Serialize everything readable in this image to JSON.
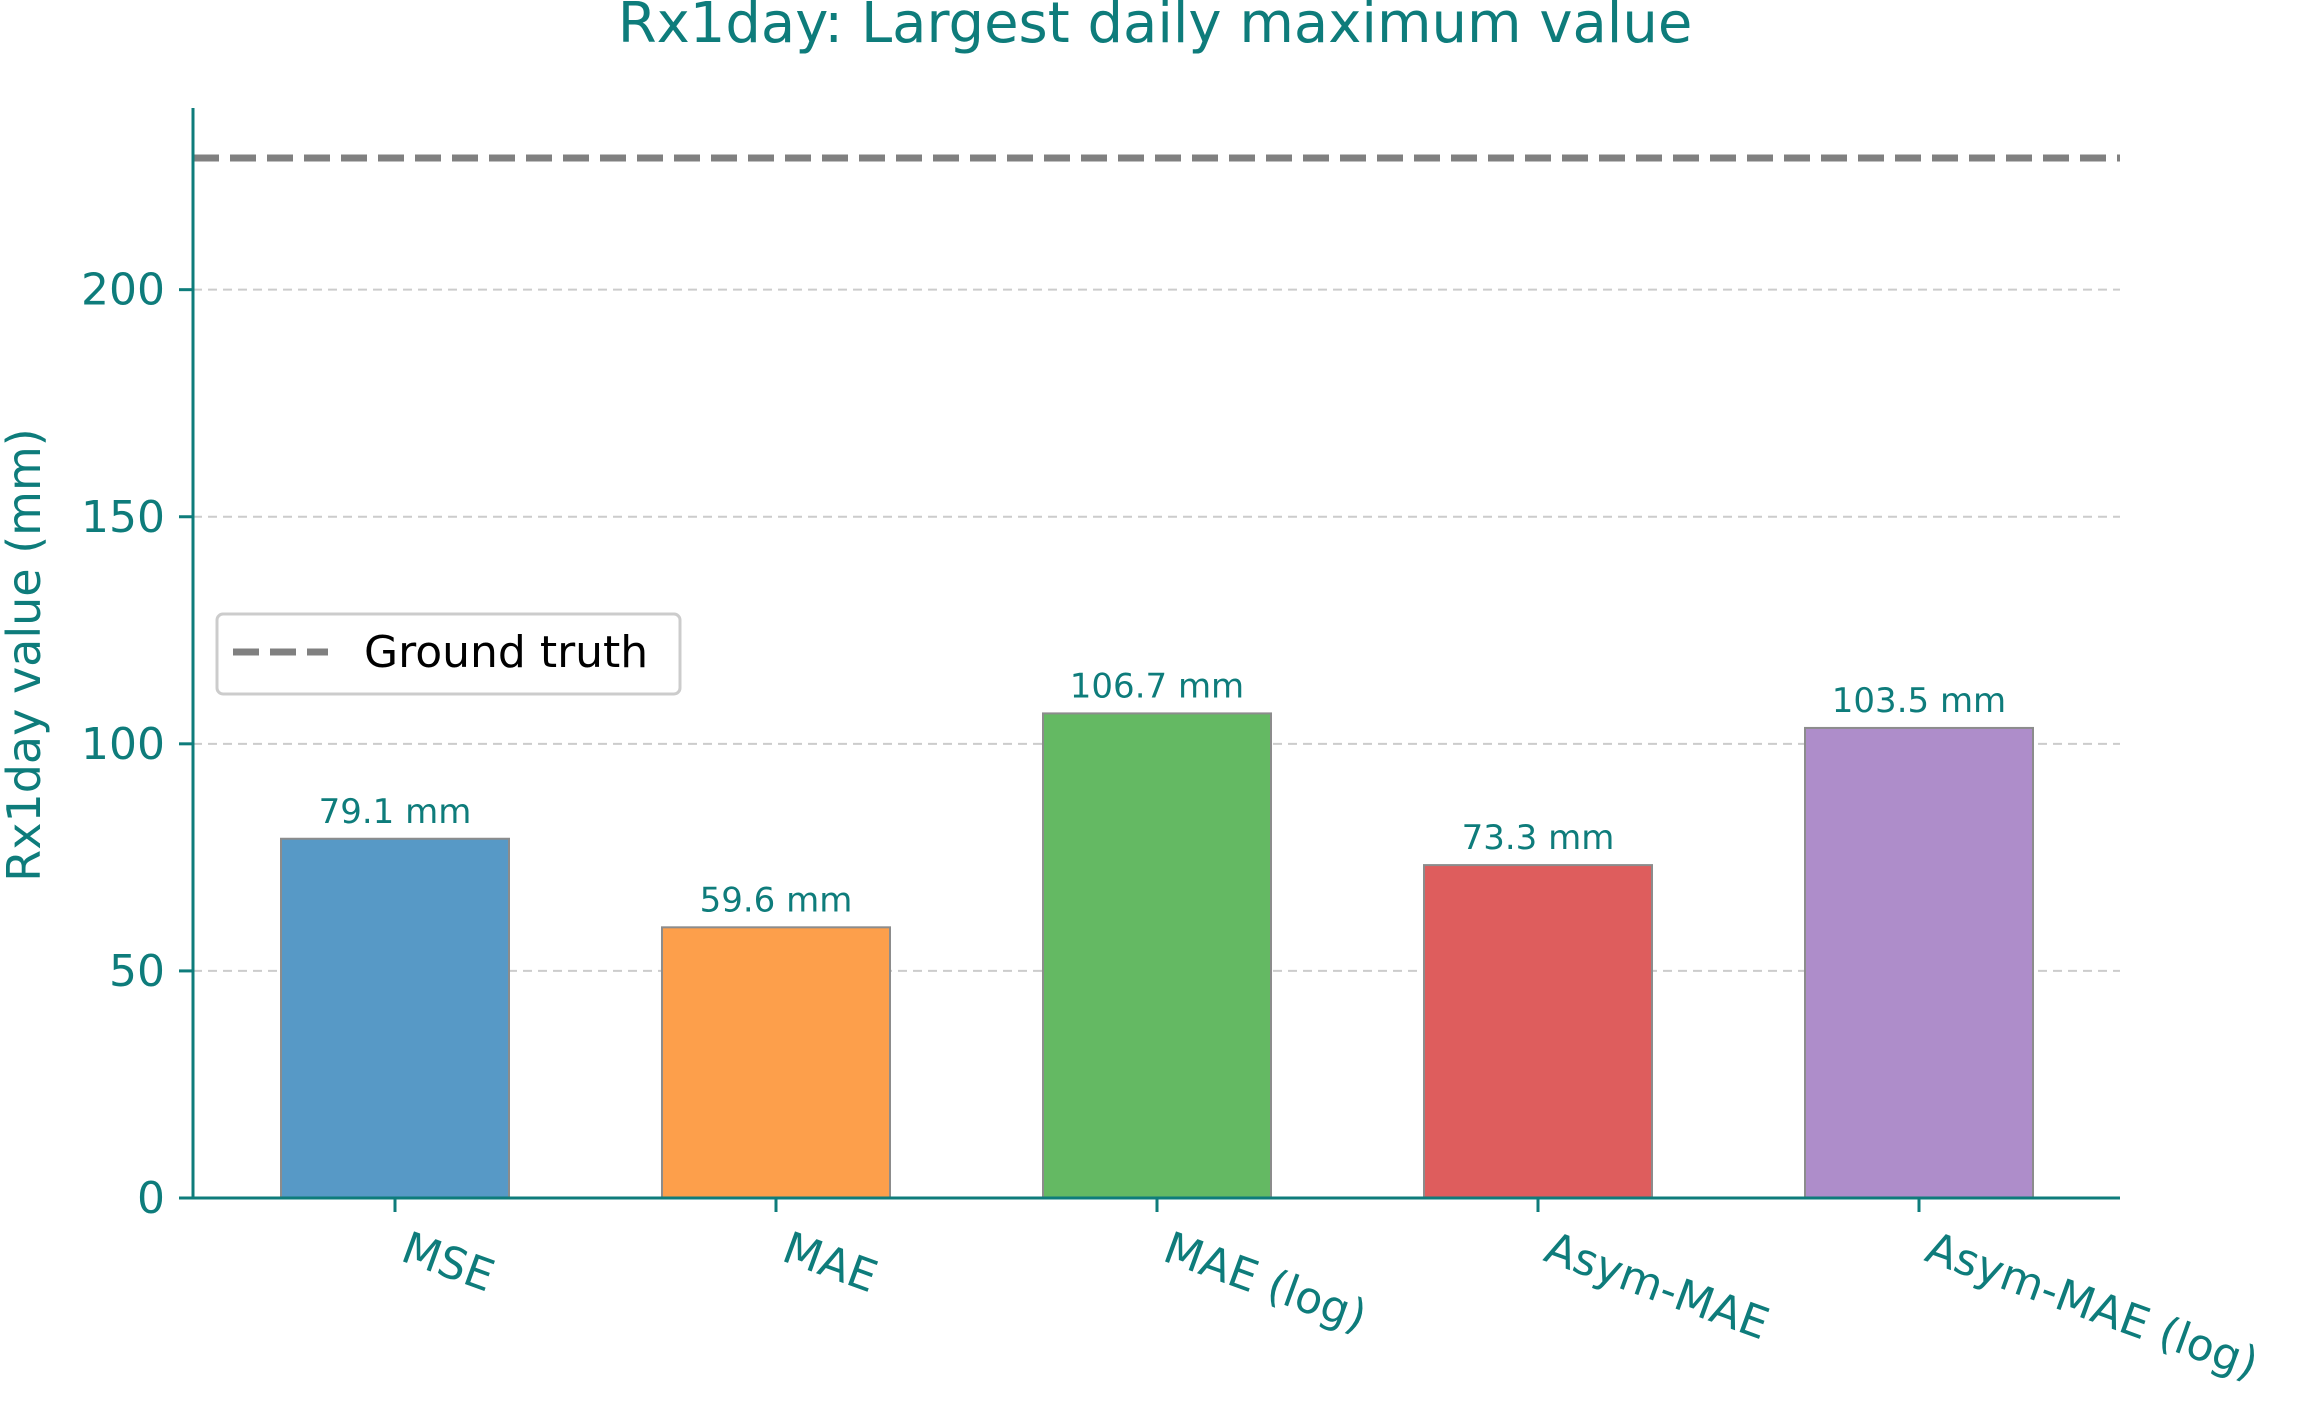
{
  "chart_data": {
    "type": "bar",
    "title": "Rx1day: Largest daily maximum value",
    "xlabel": "",
    "ylabel": "Rx1day value (mm)",
    "categories": [
      "MSE",
      "MAE",
      "MAE (log)",
      "Asym-MAE",
      "Asym-MAE (log)"
    ],
    "values": [
      79.1,
      59.6,
      106.7,
      73.3,
      103.5
    ],
    "value_labels": [
      "79.1 mm",
      "59.6 mm",
      "106.7 mm",
      "73.3 mm",
      "103.5 mm"
    ],
    "colors": [
      "#5799c6",
      "#fd9f4b",
      "#64b963",
      "#de5d5d",
      "#ae8dca"
    ],
    "reference_line": {
      "label": "Ground truth",
      "value": 229,
      "color": "#808080",
      "style": "dashed"
    },
    "yticks": [
      0,
      50,
      100,
      150,
      200
    ],
    "ylim": [
      0,
      240
    ],
    "grid": "horizontal dashed",
    "legend_position": "center-left",
    "text_color": "#0e7c7b"
  }
}
